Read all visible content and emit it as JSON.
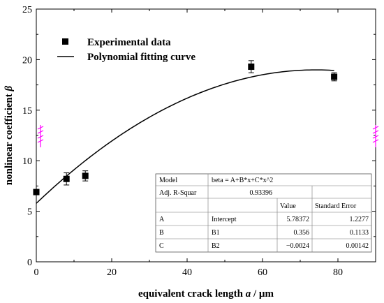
{
  "chart_data": {
    "type": "scatter",
    "xlabel_prefix": "equivalent crack length ",
    "xlabel_var": "a",
    "xlabel_unit": " / µm",
    "ylabel_prefix": "nonlinear coefficient ",
    "ylabel_var": "β",
    "xlim": [
      0,
      90
    ],
    "ylim": [
      0,
      25
    ],
    "x_ticks": [
      0,
      20,
      40,
      60,
      80
    ],
    "y_ticks": [
      0,
      5,
      10,
      15,
      20,
      25
    ],
    "legend": {
      "placement": "top-left",
      "entries": [
        "Experimental data",
        "Polynomial fitting curve"
      ]
    },
    "series": [
      {
        "name": "Experimental data",
        "kind": "points",
        "points": [
          {
            "x": 0,
            "y": 6.9,
            "err": 0.2
          },
          {
            "x": 8,
            "y": 8.2,
            "err": 0.6
          },
          {
            "x": 13,
            "y": 8.5,
            "err": 0.5
          },
          {
            "x": 57,
            "y": 19.3,
            "err": 0.6
          },
          {
            "x": 79,
            "y": 18.3,
            "err": 0.4
          }
        ]
      },
      {
        "name": "Polynomial fitting curve",
        "kind": "fit",
        "coefficients": {
          "A": 5.78372,
          "B": 0.356,
          "C": -0.0024
        },
        "x_range": [
          0,
          79
        ]
      }
    ],
    "fit_table": {
      "model_label": "Model",
      "model_value": "beta = A+B*x+C*x^2",
      "r2_label": "Adj. R-Squar",
      "r2_value": "0.93396",
      "header_value": "Value",
      "header_error": "Standard Error",
      "rows": [
        {
          "param": "A",
          "name": "Intercept",
          "value": "5.78372",
          "error": "1.2277"
        },
        {
          "param": "B",
          "name": "B1",
          "value": "0.356",
          "error": "0.1133"
        },
        {
          "param": "C",
          "name": "B2",
          "value": "−0.0024",
          "error": "0.00142"
        }
      ]
    },
    "colors": {
      "axis": "#000000",
      "marker": "#000000",
      "break_marker": "#ff00ff"
    }
  }
}
